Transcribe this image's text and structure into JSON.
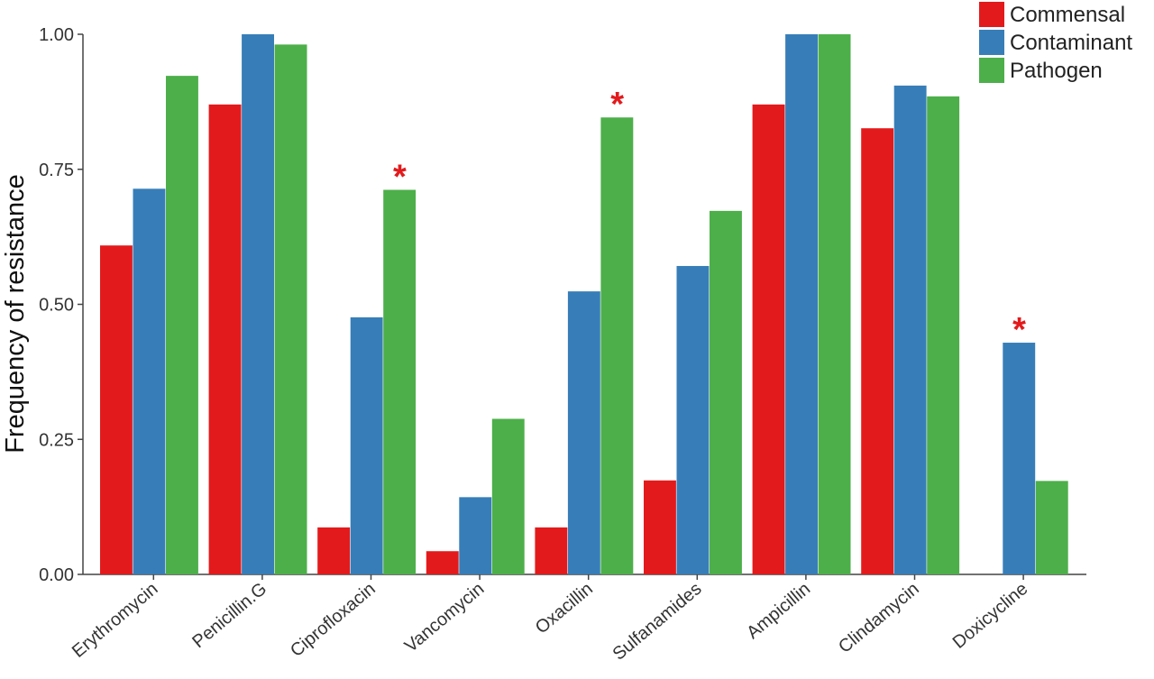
{
  "chart_data": {
    "type": "bar",
    "ylabel": "Frequency of resistance",
    "xlabel": "",
    "ylim": [
      0,
      1
    ],
    "yticks": [
      0,
      0.25,
      0.5,
      0.75,
      1
    ],
    "ytick_labels": [
      "0.00",
      "0.25",
      "0.50",
      "0.75",
      "1.00"
    ],
    "grid": false,
    "legend_position": "top-right",
    "categories": [
      "Erythromycin",
      "Penicillin.G",
      "Ciprofloxacin",
      "Vancomycin",
      "Oxacillin",
      "Sulfanamides",
      "Ampicillin",
      "Clindamycin",
      "Doxicycline"
    ],
    "series": [
      {
        "name": "Commensal",
        "color": "#e31a1c",
        "values": [
          0.609,
          0.87,
          0.087,
          0.043,
          0.087,
          0.174,
          0.87,
          0.826,
          0
        ]
      },
      {
        "name": "Contaminant",
        "color": "#377eb8",
        "values": [
          0.714,
          1.0,
          0.476,
          0.143,
          0.524,
          0.571,
          1.0,
          0.905,
          0.429
        ]
      },
      {
        "name": "Pathogen",
        "color": "#4daf4a",
        "values": [
          0.923,
          0.981,
          0.712,
          0.288,
          0.846,
          0.673,
          1.0,
          0.885,
          0.173
        ]
      }
    ],
    "annotations": [
      {
        "text": "*",
        "category": "Ciprofloxacin",
        "series": "Pathogen",
        "color": "#e31a1c"
      },
      {
        "text": "*",
        "category": "Oxacillin",
        "series": "Pathogen",
        "color": "#e31a1c"
      },
      {
        "text": "*",
        "category": "Doxicycline",
        "series": "Contaminant",
        "color": "#e31a1c"
      }
    ]
  }
}
